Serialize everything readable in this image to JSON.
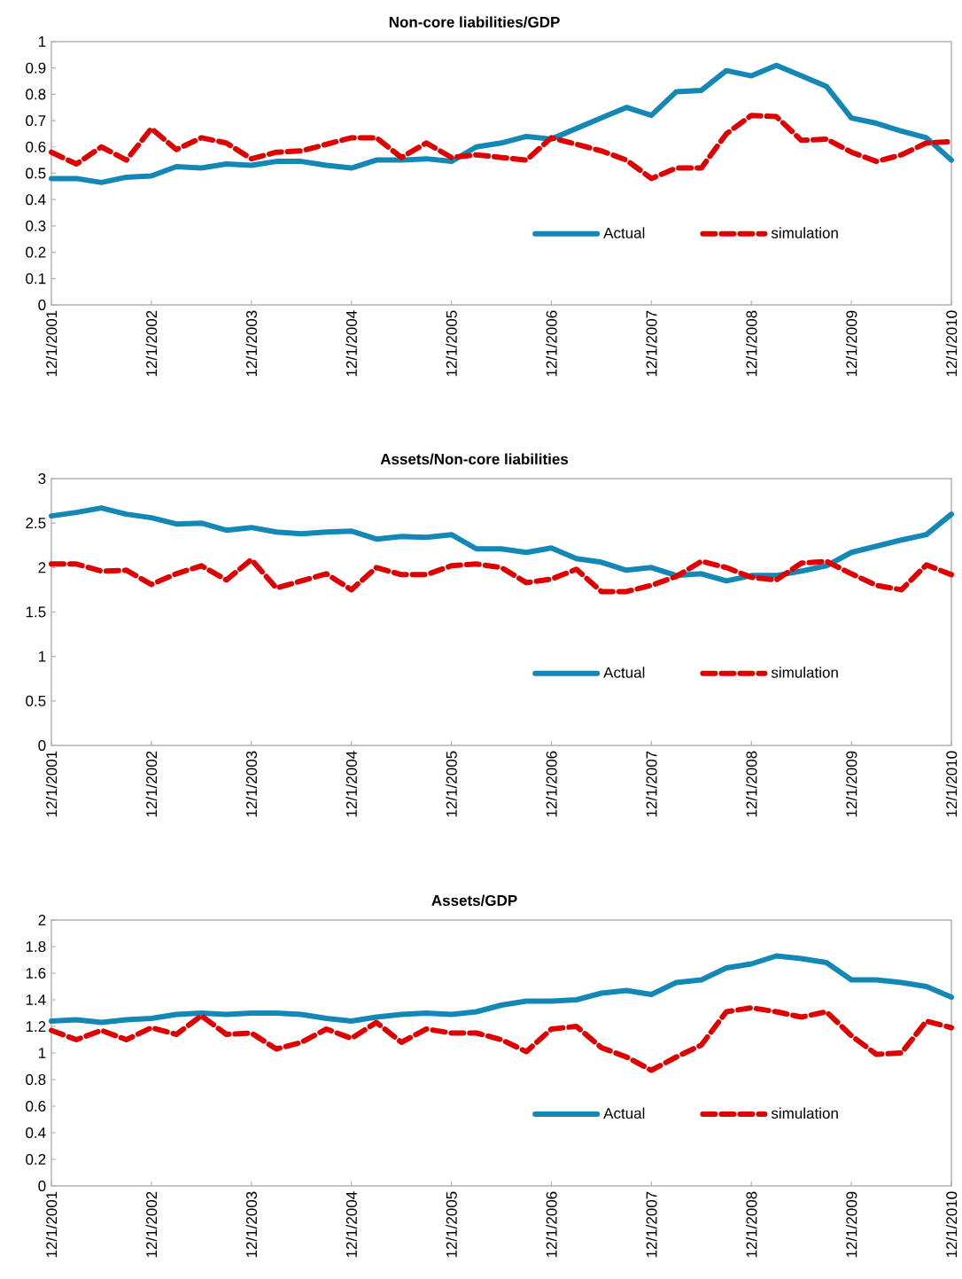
{
  "chart_data": [
    {
      "type": "line",
      "title": "Non-core liabilities/GDP",
      "categories": [
        "12/1/2001",
        null,
        null,
        null,
        "12/1/2002",
        null,
        null,
        null,
        "12/1/2003",
        null,
        null,
        null,
        "12/1/2004",
        null,
        null,
        null,
        "12/1/2005",
        null,
        null,
        null,
        "12/1/2006",
        null,
        null,
        null,
        "12/1/2007",
        null,
        null,
        null,
        "12/1/2008",
        null,
        null,
        null,
        "12/1/2009",
        null,
        null,
        null,
        "12/1/2010"
      ],
      "series": [
        {
          "name": "Actual",
          "color": "#1387b5",
          "line_style": "solid",
          "values": [
            0.48,
            0.48,
            0.465,
            0.485,
            0.49,
            0.525,
            0.52,
            0.535,
            0.53,
            0.545,
            0.545,
            0.53,
            0.52,
            0.55,
            0.55,
            0.555,
            0.545,
            0.6,
            0.615,
            0.64,
            0.63,
            0.67,
            0.71,
            0.75,
            0.72,
            0.81,
            0.815,
            0.89,
            0.87,
            0.91,
            0.87,
            0.83,
            0.71,
            0.69,
            0.66,
            0.635,
            0.55
          ]
        },
        {
          "name": "simulation",
          "color": "#e00000",
          "line_style": "dashed",
          "values": [
            0.58,
            0.535,
            0.6,
            0.55,
            0.67,
            0.59,
            0.635,
            0.615,
            0.555,
            0.58,
            0.585,
            0.61,
            0.635,
            0.635,
            0.56,
            0.615,
            0.56,
            0.57,
            0.56,
            0.55,
            0.635,
            0.61,
            0.585,
            0.55,
            0.48,
            0.52,
            0.52,
            0.65,
            0.72,
            0.715,
            0.625,
            0.63,
            0.58,
            0.545,
            0.57,
            0.615,
            0.62
          ]
        }
      ],
      "ylim": [
        0,
        1
      ],
      "yticks": [
        0,
        0.1,
        0.2,
        0.3,
        0.4,
        0.5,
        0.6,
        0.7,
        0.8,
        0.9,
        1
      ],
      "grid": false,
      "legend": "bottom right"
    },
    {
      "type": "line",
      "title": "Assets/Non-core liabilities",
      "categories": [
        "12/1/2001",
        null,
        null,
        null,
        "12/1/2002",
        null,
        null,
        null,
        "12/1/2003",
        null,
        null,
        null,
        "12/1/2004",
        null,
        null,
        null,
        "12/1/2005",
        null,
        null,
        null,
        "12/1/2006",
        null,
        null,
        null,
        "12/1/2007",
        null,
        null,
        null,
        "12/1/2008",
        null,
        null,
        null,
        "12/1/2009",
        null,
        null,
        null,
        "12/1/2010"
      ],
      "series": [
        {
          "name": "Actual",
          "color": "#1387b5",
          "line_style": "solid",
          "values": [
            2.58,
            2.62,
            2.67,
            2.6,
            2.56,
            2.49,
            2.5,
            2.42,
            2.45,
            2.4,
            2.38,
            2.4,
            2.41,
            2.32,
            2.35,
            2.34,
            2.37,
            2.21,
            2.21,
            2.17,
            2.22,
            2.1,
            2.06,
            1.97,
            2.0,
            1.91,
            1.93,
            1.85,
            1.91,
            1.91,
            1.96,
            2.02,
            2.17,
            2.24,
            2.31,
            2.37,
            2.6
          ]
        },
        {
          "name": "simulation",
          "color": "#e00000",
          "line_style": "dashed",
          "values": [
            2.04,
            2.04,
            1.96,
            1.97,
            1.81,
            1.93,
            2.02,
            1.86,
            2.09,
            1.77,
            1.85,
            1.93,
            1.75,
            2.0,
            1.92,
            1.92,
            2.02,
            2.04,
            2.0,
            1.83,
            1.87,
            1.98,
            1.73,
            1.73,
            1.8,
            1.9,
            2.07,
            2.0,
            1.89,
            1.86,
            2.05,
            2.07,
            1.93,
            1.8,
            1.75,
            2.03,
            1.92
          ]
        }
      ],
      "ylim": [
        0,
        3
      ],
      "yticks": [
        0,
        0.5,
        1,
        1.5,
        2,
        2.5,
        3
      ],
      "grid": false,
      "legend": "bottom right"
    },
    {
      "type": "line",
      "title": "Assets/GDP",
      "categories": [
        "12/1/2001",
        null,
        null,
        null,
        "12/1/2002",
        null,
        null,
        null,
        "12/1/2003",
        null,
        null,
        null,
        "12/1/2004",
        null,
        null,
        null,
        "12/1/2005",
        null,
        null,
        null,
        "12/1/2006",
        null,
        null,
        null,
        "12/1/2007",
        null,
        null,
        null,
        "12/1/2008",
        null,
        null,
        null,
        "12/1/2009",
        null,
        null,
        null,
        "12/1/2010"
      ],
      "series": [
        {
          "name": "Actual",
          "color": "#1387b5",
          "line_style": "solid",
          "values": [
            1.24,
            1.25,
            1.23,
            1.25,
            1.26,
            1.29,
            1.3,
            1.29,
            1.3,
            1.3,
            1.29,
            1.26,
            1.24,
            1.27,
            1.29,
            1.3,
            1.29,
            1.31,
            1.36,
            1.39,
            1.39,
            1.4,
            1.45,
            1.47,
            1.44,
            1.53,
            1.55,
            1.64,
            1.67,
            1.73,
            1.71,
            1.68,
            1.55,
            1.55,
            1.53,
            1.5,
            1.42
          ]
        },
        {
          "name": "simulation",
          "color": "#e00000",
          "line_style": "dashed",
          "values": [
            1.17,
            1.1,
            1.17,
            1.1,
            1.19,
            1.14,
            1.28,
            1.14,
            1.15,
            1.03,
            1.08,
            1.18,
            1.11,
            1.23,
            1.08,
            1.18,
            1.15,
            1.15,
            1.1,
            1.01,
            1.18,
            1.2,
            1.04,
            0.97,
            0.87,
            0.97,
            1.06,
            1.31,
            1.34,
            1.31,
            1.27,
            1.31,
            1.13,
            0.99,
            1.0,
            1.24,
            1.19
          ]
        }
      ],
      "ylim": [
        0,
        2
      ],
      "yticks": [
        0,
        0.2,
        0.4,
        0.6,
        0.8,
        1,
        1.2,
        1.4,
        1.6,
        1.8,
        2
      ],
      "grid": false,
      "legend": "bottom right"
    }
  ]
}
